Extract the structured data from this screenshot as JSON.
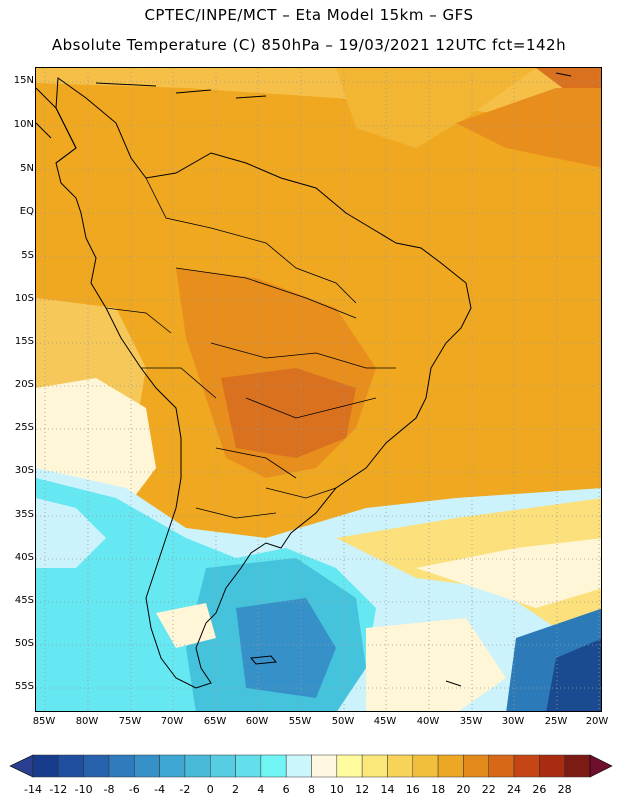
{
  "header": {
    "line1": "CPTEC/INPE/MCT –  Eta Model 15km – GFS",
    "line2": "Absolute Temperature (C) 850hPa – 19/03/2021 12UTC fct=142h"
  },
  "map": {
    "lat_labels": [
      "15N",
      "10N",
      "5N",
      "EQ",
      "5S",
      "10S",
      "15S",
      "20S",
      "25S",
      "30S",
      "35S",
      "40S",
      "45S",
      "50S",
      "55S"
    ],
    "lon_labels": [
      "85W",
      "80W",
      "75W",
      "70W",
      "65W",
      "60W",
      "55W",
      "50W",
      "45W",
      "40W",
      "35W",
      "30W",
      "25W",
      "20W"
    ],
    "field": "temperature",
    "palette": {
      "warm_orange": "#f0a820",
      "dark_orange": "#e88e1c",
      "hot": "#d9711e",
      "light_yellow": "#fbe07c",
      "pale": "#fff6d8",
      "cyan_light": "#ccf2fb",
      "cyan": "#66e8f2",
      "teal": "#46c3dc",
      "blue": "#2c7ab8",
      "deep_blue": "#1a4a90"
    }
  },
  "colorbar": {
    "ticks": [
      "-14",
      "-12",
      "-10",
      "-8",
      "-6",
      "-4",
      "-2",
      "0",
      "2",
      "4",
      "6",
      "8",
      "10",
      "12",
      "14",
      "16",
      "18",
      "20",
      "22",
      "24",
      "26",
      "28"
    ],
    "colors": [
      "#183c8c",
      "#1f4f9e",
      "#2762ad",
      "#2f7bbd",
      "#3691c8",
      "#3ea6d2",
      "#49bad9",
      "#56cde2",
      "#62dfea",
      "#70f4f4",
      "#cbf6fb",
      "#fff8e0",
      "#fffca0",
      "#fbe87a",
      "#f7d35a",
      "#f2bf3c",
      "#eca822",
      "#e28a1c",
      "#d76818",
      "#c54614",
      "#a82c10",
      "#7c1a14"
    ]
  }
}
